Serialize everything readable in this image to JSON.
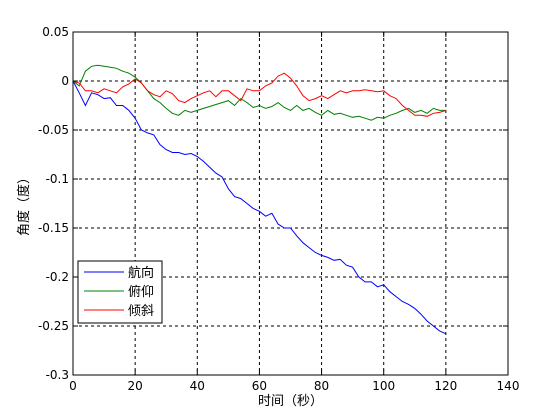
{
  "chart_data": {
    "type": "line",
    "xlabel": "时间（秒）",
    "ylabel": "角度（度）",
    "xlim": [
      0,
      140
    ],
    "ylim": [
      -0.3,
      0.05
    ],
    "x_ticks": [
      0,
      20,
      40,
      60,
      80,
      100,
      120,
      140
    ],
    "y_ticks": [
      0.05,
      0,
      -0.05,
      -0.1,
      -0.15,
      -0.2,
      -0.25,
      -0.3
    ],
    "x_tick_labels": [
      "0",
      "20",
      "40",
      "60",
      "80",
      "100",
      "120",
      "140"
    ],
    "y_tick_labels": [
      "0.05",
      "0",
      "-0.05",
      "-0.1",
      "-0.15",
      "-0.2",
      "-0.25",
      "-0.3"
    ],
    "grid": true,
    "legend_position": "bottom-left",
    "series": [
      {
        "name": "航向",
        "color": "#0000ff",
        "x": [
          0,
          2,
          4,
          6,
          8,
          10,
          12,
          14,
          16,
          18,
          20,
          22,
          24,
          26,
          28,
          30,
          32,
          34,
          36,
          38,
          40,
          42,
          44,
          46,
          48,
          50,
          52,
          54,
          56,
          58,
          60,
          62,
          64,
          66,
          68,
          70,
          72,
          74,
          76,
          78,
          80,
          82,
          84,
          86,
          88,
          90,
          92,
          94,
          96,
          98,
          100,
          102,
          104,
          106,
          108,
          110,
          112,
          114,
          116,
          118,
          120
        ],
        "values": [
          0,
          -0.012,
          -0.025,
          -0.012,
          -0.014,
          -0.018,
          -0.017,
          -0.025,
          -0.025,
          -0.03,
          -0.038,
          -0.05,
          -0.053,
          -0.055,
          -0.065,
          -0.07,
          -0.073,
          -0.073,
          -0.075,
          -0.074,
          -0.077,
          -0.082,
          -0.088,
          -0.094,
          -0.098,
          -0.11,
          -0.118,
          -0.12,
          -0.125,
          -0.13,
          -0.133,
          -0.138,
          -0.135,
          -0.146,
          -0.15,
          -0.15,
          -0.158,
          -0.165,
          -0.17,
          -0.175,
          -0.178,
          -0.18,
          -0.183,
          -0.182,
          -0.188,
          -0.19,
          -0.2,
          -0.205,
          -0.205,
          -0.21,
          -0.208,
          -0.215,
          -0.22,
          -0.225,
          -0.228,
          -0.232,
          -0.238,
          -0.245,
          -0.25,
          -0.255,
          -0.258
        ]
      },
      {
        "name": "俯仰",
        "color": "#008000",
        "x": [
          0,
          2,
          4,
          6,
          8,
          10,
          12,
          14,
          16,
          18,
          20,
          22,
          24,
          26,
          28,
          30,
          32,
          34,
          36,
          38,
          40,
          42,
          44,
          46,
          48,
          50,
          52,
          54,
          56,
          58,
          60,
          62,
          64,
          66,
          68,
          70,
          72,
          74,
          76,
          78,
          80,
          82,
          84,
          86,
          88,
          90,
          92,
          94,
          96,
          98,
          100,
          102,
          104,
          106,
          108,
          110,
          112,
          114,
          116,
          118,
          120
        ],
        "values": [
          0,
          -0.005,
          0.01,
          0.015,
          0.016,
          0.015,
          0.014,
          0.013,
          0.01,
          0.008,
          0.004,
          -0.002,
          -0.01,
          -0.018,
          -0.022,
          -0.028,
          -0.033,
          -0.035,
          -0.03,
          -0.032,
          -0.03,
          -0.028,
          -0.026,
          -0.024,
          -0.022,
          -0.02,
          -0.025,
          -0.018,
          -0.022,
          -0.027,
          -0.025,
          -0.028,
          -0.026,
          -0.022,
          -0.027,
          -0.03,
          -0.025,
          -0.03,
          -0.028,
          -0.032,
          -0.035,
          -0.03,
          -0.034,
          -0.033,
          -0.035,
          -0.037,
          -0.036,
          -0.038,
          -0.04,
          -0.037,
          -0.038,
          -0.035,
          -0.033,
          -0.03,
          -0.028,
          -0.032,
          -0.03,
          -0.033,
          -0.028,
          -0.03,
          -0.03
        ]
      },
      {
        "name": "倾斜",
        "color": "#ff0000",
        "x": [
          0,
          2,
          4,
          6,
          8,
          10,
          12,
          14,
          16,
          18,
          20,
          22,
          24,
          26,
          28,
          30,
          32,
          34,
          36,
          38,
          40,
          42,
          44,
          46,
          48,
          50,
          52,
          54,
          56,
          58,
          60,
          62,
          64,
          66,
          68,
          70,
          72,
          74,
          76,
          78,
          80,
          82,
          84,
          86,
          88,
          90,
          92,
          94,
          96,
          98,
          100,
          102,
          104,
          106,
          108,
          110,
          112,
          114,
          116,
          118,
          120
        ],
        "values": [
          0,
          -0.002,
          -0.01,
          -0.01,
          -0.012,
          -0.008,
          -0.01,
          -0.012,
          -0.006,
          -0.003,
          0.002,
          -0.002,
          -0.01,
          -0.014,
          -0.016,
          -0.01,
          -0.013,
          -0.02,
          -0.022,
          -0.018,
          -0.015,
          -0.012,
          -0.01,
          -0.016,
          -0.01,
          -0.01,
          -0.015,
          -0.02,
          -0.008,
          -0.01,
          -0.01,
          -0.005,
          -0.002,
          0.005,
          0.008,
          0.003,
          -0.005,
          -0.015,
          -0.02,
          -0.018,
          -0.015,
          -0.018,
          -0.014,
          -0.01,
          -0.012,
          -0.01,
          -0.01,
          -0.009,
          -0.01,
          -0.011,
          -0.01,
          -0.015,
          -0.018,
          -0.025,
          -0.03,
          -0.035,
          -0.035,
          -0.036,
          -0.033,
          -0.032,
          -0.03
        ]
      }
    ]
  }
}
